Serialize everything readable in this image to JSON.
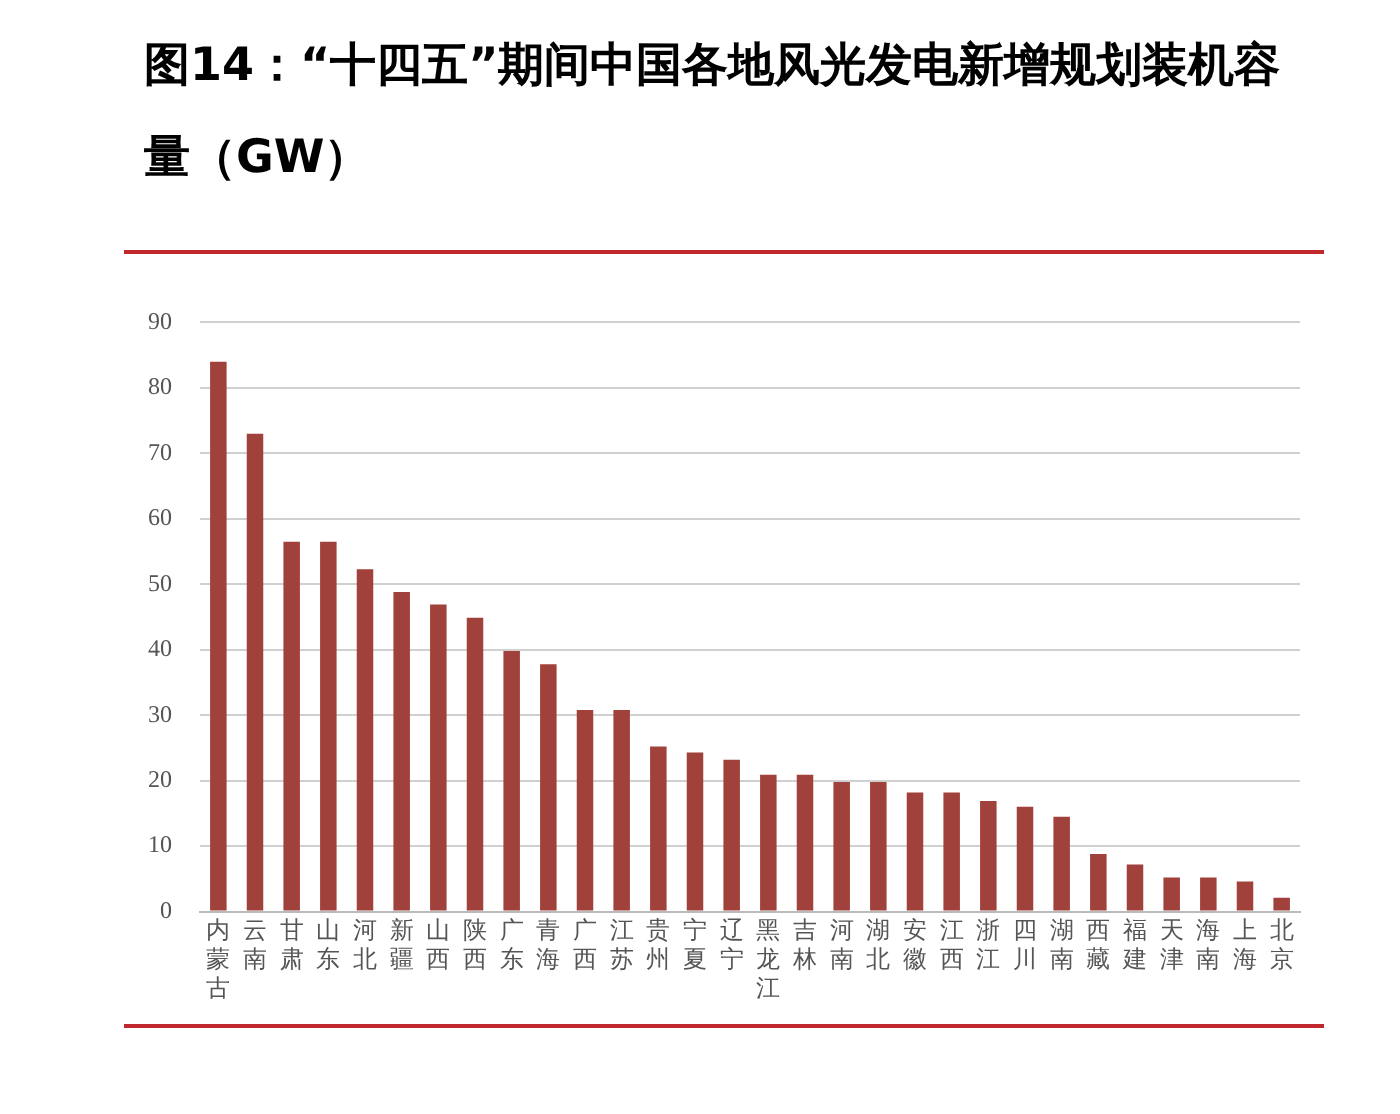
{
  "chart_data": {
    "type": "bar",
    "title": "图14：“十四五”期间中国各地风光发电新增规划装机容量（GW）",
    "categories": [
      "内蒙古",
      "云南",
      "甘肃",
      "山东",
      "河北",
      "新疆",
      "山西",
      "陕西",
      "广东",
      "青海",
      "广西",
      "江苏",
      "贵州",
      "宁夏",
      "辽宁",
      "黑龙江",
      "吉林",
      "河南",
      "湖北",
      "安徽",
      "江西",
      "浙江",
      "四川",
      "湖南",
      "西藏",
      "福建",
      "天津",
      "海南",
      "上海",
      "北京"
    ],
    "values": [
      84,
      73,
      56.5,
      56.5,
      52.3,
      48.8,
      46.9,
      44.9,
      39.8,
      37.8,
      30.8,
      30.8,
      25.2,
      24.3,
      23.2,
      20.9,
      20.9,
      19.8,
      19.8,
      18.2,
      18.2,
      16.9,
      16,
      14.5,
      8.8,
      7.2,
      5.2,
      5.2,
      4.6,
      2.1
    ],
    "color": "#a0413c",
    "ylim": [
      0,
      90
    ],
    "yticks": [
      0,
      10,
      20,
      30,
      40,
      50,
      60,
      70,
      80,
      90
    ],
    "grid": "y",
    "legend": false
  }
}
